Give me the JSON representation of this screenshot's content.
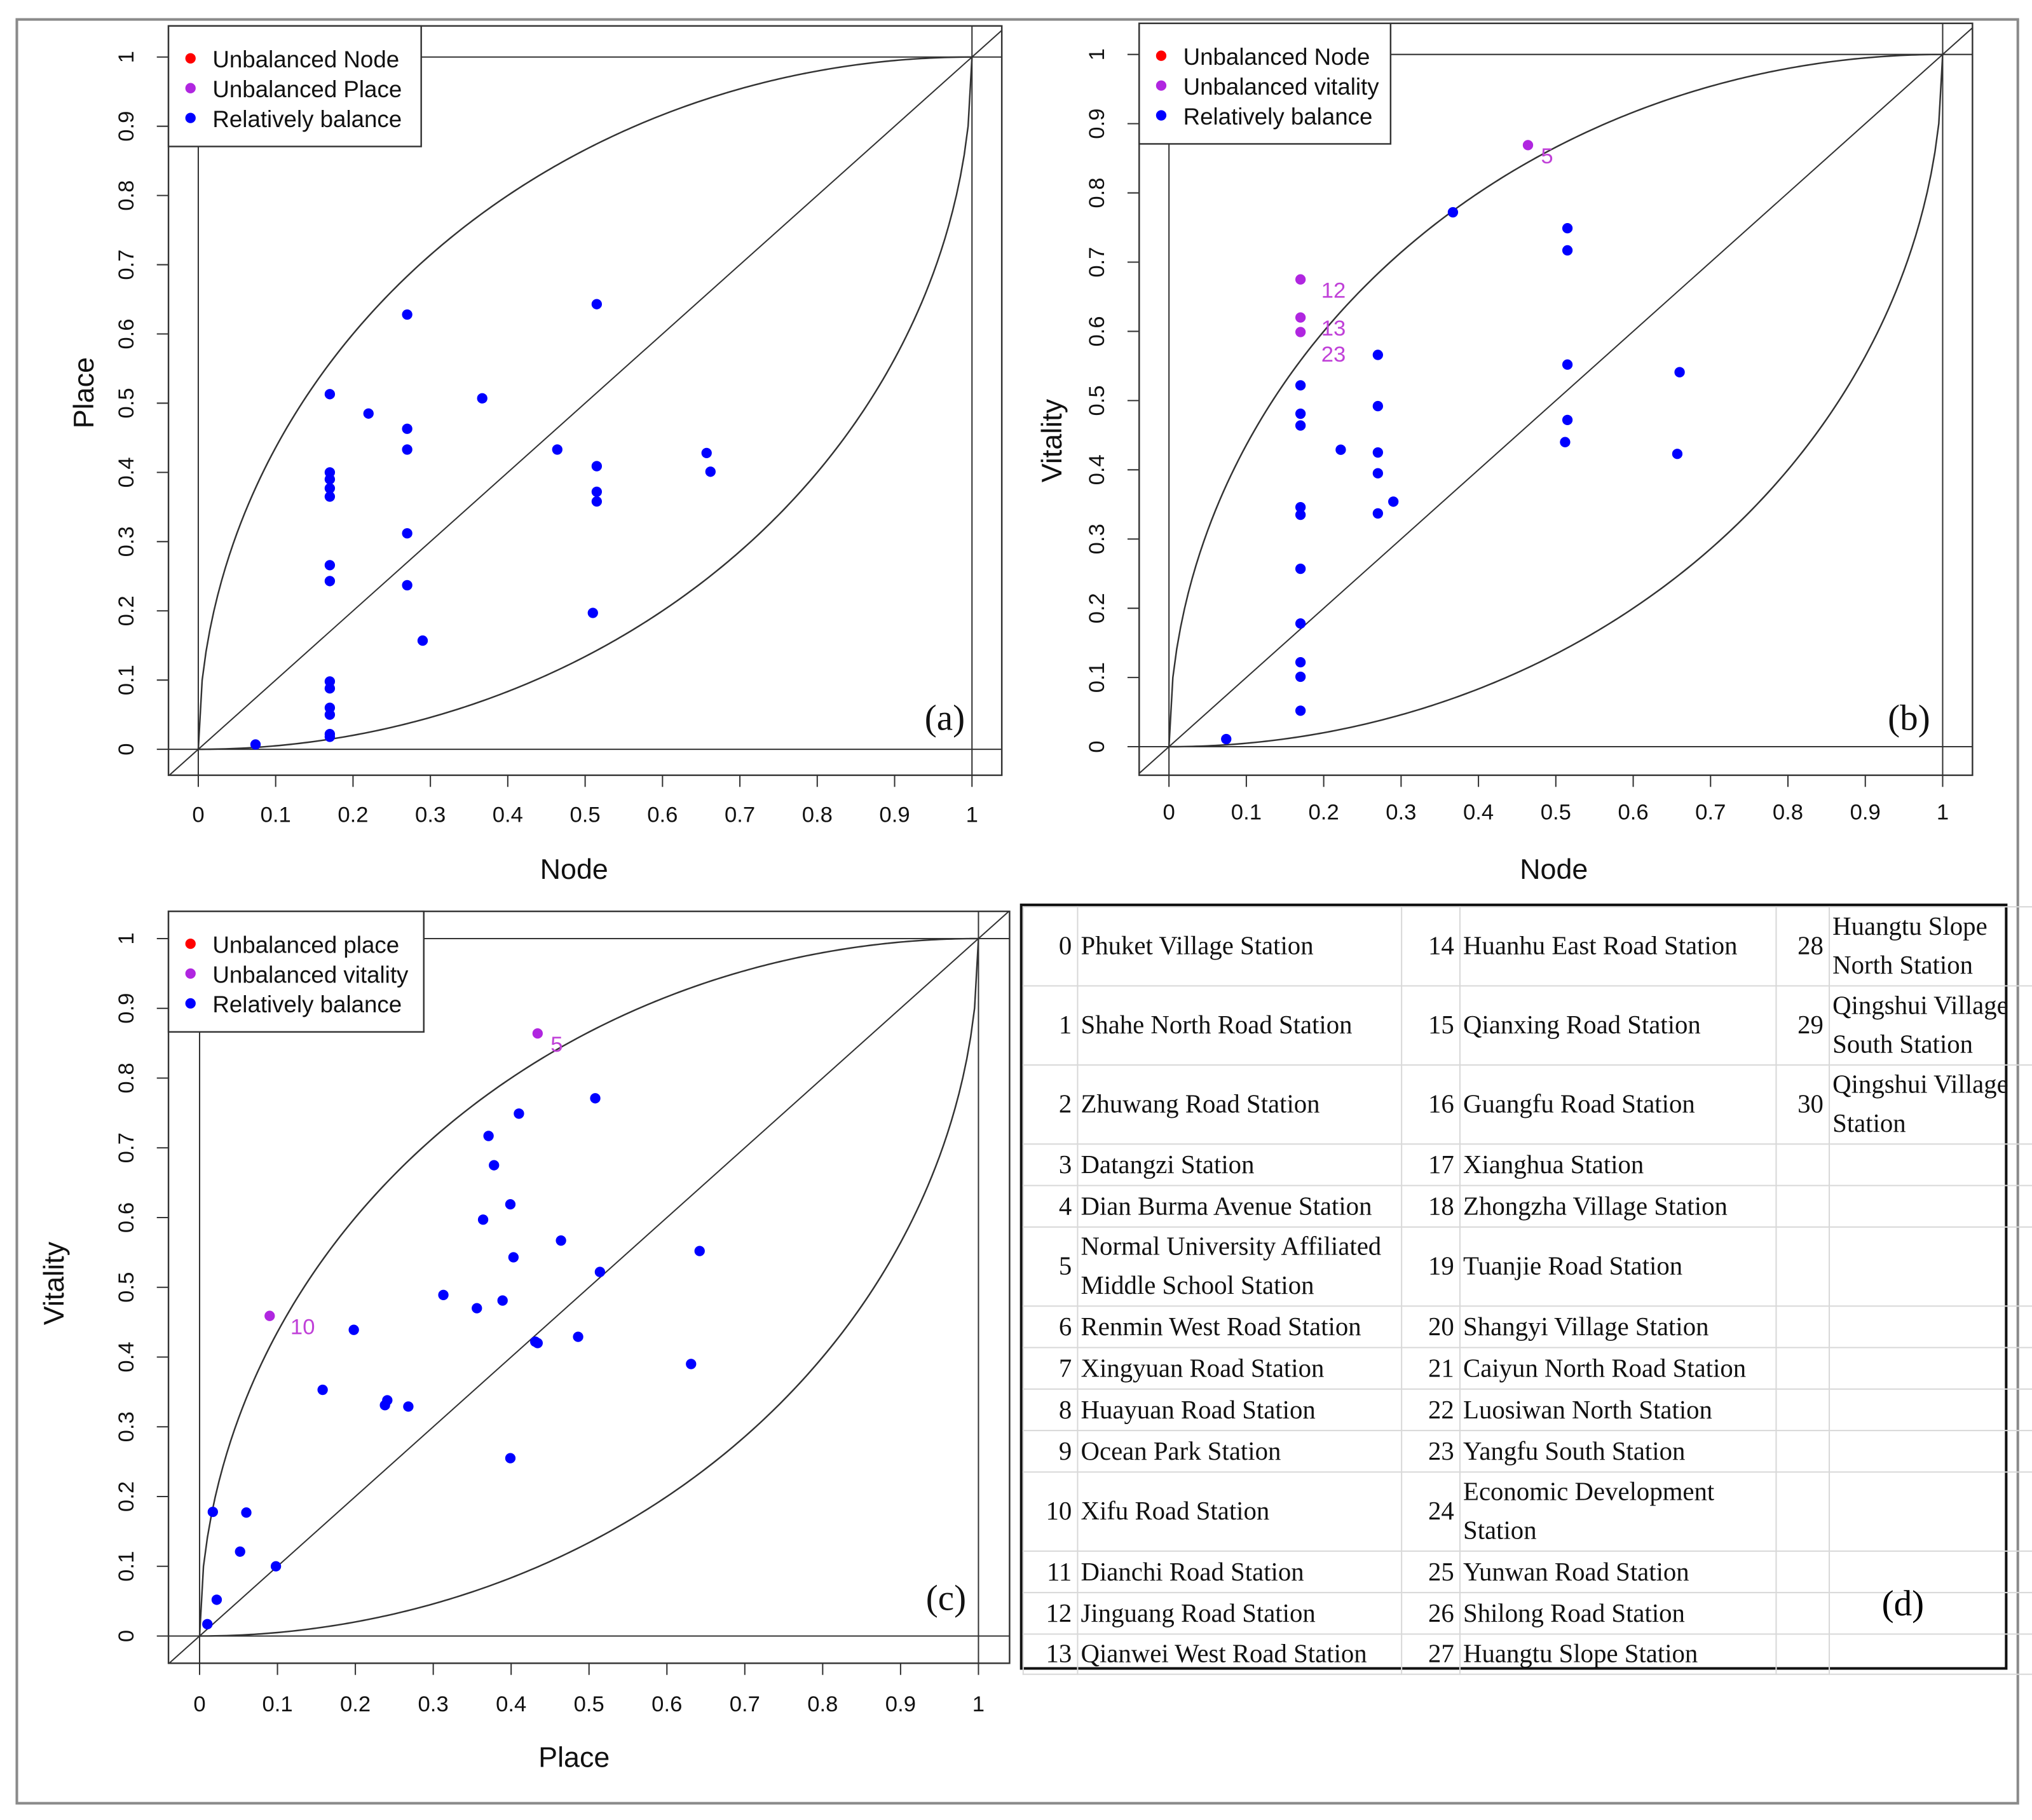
{
  "chart_data": [
    {
      "type": "scatter",
      "panel_label": "(a)",
      "xlabel": "Node",
      "ylabel": "Place",
      "xlim": [
        0,
        1
      ],
      "ylim": [
        0,
        1
      ],
      "ticks": [
        "0",
        "0.1",
        "0.2",
        "0.3",
        "0.4",
        "0.5",
        "0.6",
        "0.7",
        "0.8",
        "0.9",
        "1"
      ],
      "legend_position": "top-left",
      "legend": [
        {
          "label": "Unbalanced Node",
          "color": "#ff0000"
        },
        {
          "label": "Unbalanced Place",
          "color": "#b026e0"
        },
        {
          "label": "Relatively balance",
          "color": "#0000ff"
        }
      ],
      "points": [
        {
          "x": 0.074,
          "y": 0.007,
          "s": 2
        },
        {
          "x": 0.17,
          "y": 0.513,
          "s": 2
        },
        {
          "x": 0.17,
          "y": 0.4,
          "s": 2
        },
        {
          "x": 0.17,
          "y": 0.39,
          "s": 2
        },
        {
          "x": 0.17,
          "y": 0.377,
          "s": 2
        },
        {
          "x": 0.17,
          "y": 0.365,
          "s": 2
        },
        {
          "x": 0.17,
          "y": 0.266,
          "s": 2
        },
        {
          "x": 0.17,
          "y": 0.243,
          "s": 2
        },
        {
          "x": 0.17,
          "y": 0.098,
          "s": 2
        },
        {
          "x": 0.17,
          "y": 0.088,
          "s": 2
        },
        {
          "x": 0.17,
          "y": 0.06,
          "s": 2
        },
        {
          "x": 0.17,
          "y": 0.05,
          "s": 2
        },
        {
          "x": 0.17,
          "y": 0.022,
          "s": 2
        },
        {
          "x": 0.17,
          "y": 0.018,
          "s": 2
        },
        {
          "x": 0.22,
          "y": 0.485,
          "s": 2
        },
        {
          "x": 0.27,
          "y": 0.628,
          "s": 2
        },
        {
          "x": 0.27,
          "y": 0.463,
          "s": 2
        },
        {
          "x": 0.27,
          "y": 0.433,
          "s": 2
        },
        {
          "x": 0.27,
          "y": 0.312,
          "s": 2
        },
        {
          "x": 0.27,
          "y": 0.237,
          "s": 2
        },
        {
          "x": 0.29,
          "y": 0.157,
          "s": 2
        },
        {
          "x": 0.367,
          "y": 0.507,
          "s": 2
        },
        {
          "x": 0.464,
          "y": 0.433,
          "s": 2
        },
        {
          "x": 0.515,
          "y": 0.643,
          "s": 2
        },
        {
          "x": 0.515,
          "y": 0.409,
          "s": 2
        },
        {
          "x": 0.515,
          "y": 0.372,
          "s": 2
        },
        {
          "x": 0.515,
          "y": 0.358,
          "s": 2
        },
        {
          "x": 0.51,
          "y": 0.197,
          "s": 2
        },
        {
          "x": 0.657,
          "y": 0.428,
          "s": 2
        },
        {
          "x": 0.662,
          "y": 0.401,
          "s": 2
        }
      ]
    },
    {
      "type": "scatter",
      "panel_label": "(b)",
      "xlabel": "Node",
      "ylabel": "Vitality",
      "xlim": [
        0,
        1
      ],
      "ylim": [
        0,
        1
      ],
      "ticks": [
        "0",
        "0.1",
        "0.2",
        "0.3",
        "0.4",
        "0.5",
        "0.6",
        "0.7",
        "0.8",
        "0.9",
        "1"
      ],
      "legend_position": "top-left",
      "legend": [
        {
          "label": "Unbalanced Node",
          "color": "#ff0000"
        },
        {
          "label": "Unbalanced vitality",
          "color": "#b026e0"
        },
        {
          "label": "Relatively balance",
          "color": "#0000ff"
        }
      ],
      "points": [
        {
          "x": 0.074,
          "y": 0.011,
          "s": 2
        },
        {
          "x": 0.17,
          "y": 0.675,
          "s": 1,
          "label": "12"
        },
        {
          "x": 0.17,
          "y": 0.62,
          "s": 1,
          "label": "13"
        },
        {
          "x": 0.17,
          "y": 0.599,
          "s": 1,
          "label": "23"
        },
        {
          "x": 0.17,
          "y": 0.522,
          "s": 2
        },
        {
          "x": 0.17,
          "y": 0.481,
          "s": 2
        },
        {
          "x": 0.17,
          "y": 0.464,
          "s": 2
        },
        {
          "x": 0.17,
          "y": 0.346,
          "s": 2
        },
        {
          "x": 0.17,
          "y": 0.335,
          "s": 2
        },
        {
          "x": 0.17,
          "y": 0.257,
          "s": 2
        },
        {
          "x": 0.17,
          "y": 0.178,
          "s": 2
        },
        {
          "x": 0.17,
          "y": 0.122,
          "s": 2
        },
        {
          "x": 0.17,
          "y": 0.101,
          "s": 2
        },
        {
          "x": 0.17,
          "y": 0.052,
          "s": 2
        },
        {
          "x": 0.222,
          "y": 0.429,
          "s": 2
        },
        {
          "x": 0.27,
          "y": 0.566,
          "s": 2
        },
        {
          "x": 0.27,
          "y": 0.492,
          "s": 2
        },
        {
          "x": 0.27,
          "y": 0.425,
          "s": 2
        },
        {
          "x": 0.27,
          "y": 0.395,
          "s": 2
        },
        {
          "x": 0.27,
          "y": 0.337,
          "s": 2
        },
        {
          "x": 0.29,
          "y": 0.354,
          "s": 2
        },
        {
          "x": 0.367,
          "y": 0.772,
          "s": 2
        },
        {
          "x": 0.464,
          "y": 0.869,
          "s": 1,
          "label": "5"
        },
        {
          "x": 0.515,
          "y": 0.749,
          "s": 2
        },
        {
          "x": 0.515,
          "y": 0.717,
          "s": 2
        },
        {
          "x": 0.515,
          "y": 0.552,
          "s": 2
        },
        {
          "x": 0.515,
          "y": 0.472,
          "s": 2
        },
        {
          "x": 0.512,
          "y": 0.44,
          "s": 2
        },
        {
          "x": 0.66,
          "y": 0.541,
          "s": 2
        },
        {
          "x": 0.657,
          "y": 0.423,
          "s": 2
        }
      ]
    },
    {
      "type": "scatter",
      "panel_label": "(c)",
      "xlabel": "Place",
      "ylabel": "Vitality",
      "xlim": [
        0,
        1
      ],
      "ylim": [
        0,
        1
      ],
      "ticks": [
        "0",
        "0.1",
        "0.2",
        "0.3",
        "0.4",
        "0.5",
        "0.6",
        "0.7",
        "0.8",
        "0.9",
        "1"
      ],
      "legend_position": "top-left",
      "legend": [
        {
          "label": "Unbalanced place",
          "color": "#ff0000"
        },
        {
          "label": "Unbalanced vitality",
          "color": "#b026e0"
        },
        {
          "label": "Relatively balance",
          "color": "#0000ff"
        }
      ],
      "points": [
        {
          "x": 0.434,
          "y": 0.864,
          "s": 1,
          "label": "5"
        },
        {
          "x": 0.09,
          "y": 0.459,
          "s": 1,
          "label": "10"
        },
        {
          "x": 0.508,
          "y": 0.771,
          "s": 2
        },
        {
          "x": 0.41,
          "y": 0.749,
          "s": 2
        },
        {
          "x": 0.371,
          "y": 0.717,
          "s": 2
        },
        {
          "x": 0.378,
          "y": 0.675,
          "s": 2
        },
        {
          "x": 0.399,
          "y": 0.619,
          "s": 2
        },
        {
          "x": 0.364,
          "y": 0.597,
          "s": 2
        },
        {
          "x": 0.464,
          "y": 0.567,
          "s": 2
        },
        {
          "x": 0.403,
          "y": 0.543,
          "s": 2
        },
        {
          "x": 0.642,
          "y": 0.552,
          "s": 2
        },
        {
          "x": 0.514,
          "y": 0.522,
          "s": 2
        },
        {
          "x": 0.313,
          "y": 0.489,
          "s": 2
        },
        {
          "x": 0.356,
          "y": 0.47,
          "s": 2
        },
        {
          "x": 0.389,
          "y": 0.481,
          "s": 2
        },
        {
          "x": 0.198,
          "y": 0.439,
          "s": 2
        },
        {
          "x": 0.431,
          "y": 0.422,
          "s": 2
        },
        {
          "x": 0.434,
          "y": 0.42,
          "s": 2
        },
        {
          "x": 0.486,
          "y": 0.429,
          "s": 2
        },
        {
          "x": 0.631,
          "y": 0.39,
          "s": 2
        },
        {
          "x": 0.158,
          "y": 0.353,
          "s": 2
        },
        {
          "x": 0.241,
          "y": 0.338,
          "s": 2
        },
        {
          "x": 0.238,
          "y": 0.331,
          "s": 2
        },
        {
          "x": 0.268,
          "y": 0.329,
          "s": 2
        },
        {
          "x": 0.399,
          "y": 0.255,
          "s": 2
        },
        {
          "x": 0.017,
          "y": 0.178,
          "s": 2
        },
        {
          "x": 0.06,
          "y": 0.177,
          "s": 2
        },
        {
          "x": 0.052,
          "y": 0.121,
          "s": 2
        },
        {
          "x": 0.098,
          "y": 0.1,
          "s": 2
        },
        {
          "x": 0.022,
          "y": 0.052,
          "s": 2
        },
        {
          "x": 0.01,
          "y": 0.017,
          "s": 2
        }
      ]
    }
  ],
  "table": {
    "panel_label": "(d)",
    "stations": [
      {
        "n": "0",
        "name": "Phuket Village Station"
      },
      {
        "n": "1",
        "name": "Shahe North Road Station"
      },
      {
        "n": "2",
        "name": "Zhuwang Road Station"
      },
      {
        "n": "3",
        "name": "Datangzi Station"
      },
      {
        "n": "4",
        "name": "Dian Burma Avenue Station"
      },
      {
        "n": "5",
        "name": "Normal University Affiliated Middle School Station"
      },
      {
        "n": "6",
        "name": "Renmin West Road Station"
      },
      {
        "n": "7",
        "name": "Xingyuan Road Station"
      },
      {
        "n": "8",
        "name": "Huayuan Road Station"
      },
      {
        "n": "9",
        "name": "Ocean Park Station"
      },
      {
        "n": "10",
        "name": "Xifu Road Station"
      },
      {
        "n": "11",
        "name": "Dianchi Road Station"
      },
      {
        "n": "12",
        "name": "Jinguang Road Station"
      },
      {
        "n": "13",
        "name": "Qianwei West Road Station"
      },
      {
        "n": "14",
        "name": "Huanhu East Road Station"
      },
      {
        "n": "15",
        "name": "Qianxing Road Station"
      },
      {
        "n": "16",
        "name": "Guangfu Road Station"
      },
      {
        "n": "17",
        "name": "Xianghua Station"
      },
      {
        "n": "18",
        "name": "Zhongzha Village Station"
      },
      {
        "n": "19",
        "name": "Tuanjie Road Station"
      },
      {
        "n": "20",
        "name": "Shangyi Village Station"
      },
      {
        "n": "21",
        "name": "Caiyun North Road Station"
      },
      {
        "n": "22",
        "name": "Luosiwan North Station"
      },
      {
        "n": "23",
        "name": "Yangfu South Station"
      },
      {
        "n": "24",
        "name": "Economic Development Station"
      },
      {
        "n": "25",
        "name": "Yunwan Road Station"
      },
      {
        "n": "26",
        "name": "Shilong Road Station"
      },
      {
        "n": "27",
        "name": "Huangtu Slope Station"
      },
      {
        "n": "28",
        "name": "Huangtu Slope North Station"
      },
      {
        "n": "29",
        "name": "Qingshui Village South Station"
      },
      {
        "n": "30",
        "name": "Qingshui Village Station"
      }
    ]
  }
}
